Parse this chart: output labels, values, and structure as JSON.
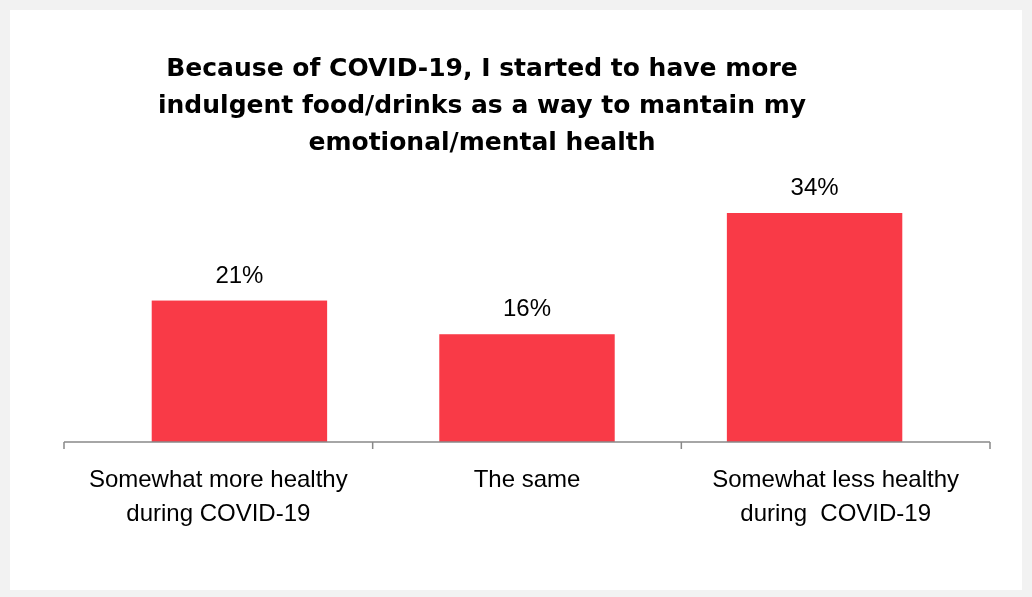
{
  "chart_data": {
    "type": "bar",
    "title": "Because of COVID-19, I started to have more indulgent food/drinks as a way to mantain my emotional/mental health",
    "categories": [
      "Somewhat more healthy during COVID-19",
      "The same",
      "Somewhat less healthy during  COVID-19"
    ],
    "values": [
      21,
      16,
      34
    ],
    "color": "#f93a47",
    "value_labels": [
      "21%",
      "16%",
      "34%"
    ]
  }
}
